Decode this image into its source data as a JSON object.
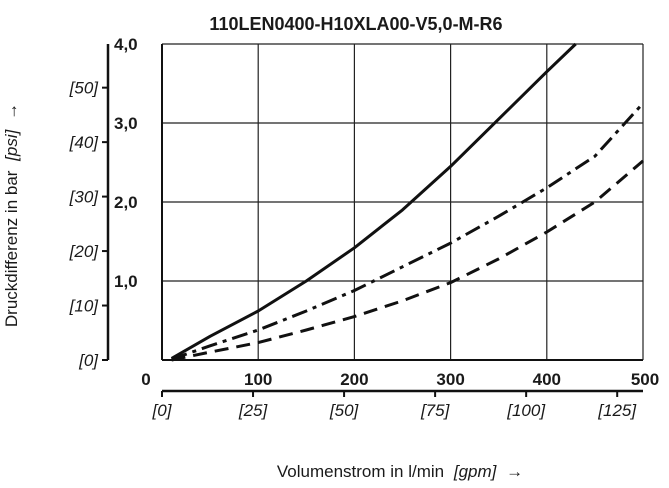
{
  "chart_data": {
    "type": "line",
    "title": "110LEN0400-H10XLA00-V5,0-M-R6",
    "xlabel": "Volumenstrom in l/min",
    "xlabel_unit_alt": "[gpm]",
    "xlabel_arrow": "→",
    "ylabel": "Druckdifferenz in bar",
    "ylabel_unit_alt": "[psi]",
    "ylabel_arrow": "→",
    "xlim": [
      0,
      500
    ],
    "ylim": [
      0,
      4.0
    ],
    "grid": true,
    "x_ticks": [
      "0",
      "100",
      "200",
      "300",
      "400",
      "500"
    ],
    "y_ticks": [
      "",
      "1,0",
      "2,0",
      "3,0",
      "4,0"
    ],
    "x_ticks_gpm": [
      "[0]",
      "[25]",
      "[50]",
      "[75]",
      "[100]",
      "[125]"
    ],
    "y_ticks_psi": [
      "[0]",
      "[10]",
      "[20]",
      "[30]",
      "[40]",
      "[50]"
    ],
    "series": [
      {
        "style": "solid",
        "x": [
          10,
          50,
          100,
          150,
          200,
          250,
          300,
          350,
          400,
          430
        ],
        "y": [
          0.02,
          0.3,
          0.62,
          1.0,
          1.42,
          1.9,
          2.45,
          3.05,
          3.65,
          4.0
        ]
      },
      {
        "style": "dash-dot",
        "x": [
          10,
          50,
          100,
          150,
          200,
          250,
          300,
          350,
          400,
          450,
          500
        ],
        "y": [
          0.01,
          0.18,
          0.38,
          0.62,
          0.88,
          1.18,
          1.48,
          1.82,
          2.18,
          2.58,
          3.25
        ]
      },
      {
        "style": "dashed",
        "x": [
          10,
          50,
          100,
          150,
          200,
          250,
          300,
          350,
          400,
          450,
          500
        ],
        "y": [
          0.0,
          0.1,
          0.22,
          0.38,
          0.55,
          0.75,
          0.98,
          1.28,
          1.62,
          2.0,
          2.52
        ]
      }
    ]
  }
}
